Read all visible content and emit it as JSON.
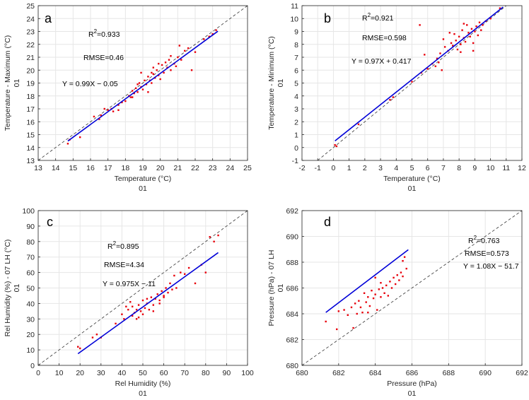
{
  "chart_data": [
    {
      "type": "scatter",
      "panel_label": "a",
      "xlabel": "Temperature (°C)",
      "xsublabel": "01",
      "ylabel": "Temperature - Maximum (°C)",
      "ysublabel": "01",
      "xlim": [
        13,
        25
      ],
      "ylim": [
        13,
        25
      ],
      "xticks": [
        13,
        14,
        15,
        16,
        17,
        18,
        19,
        20,
        21,
        22,
        23,
        24,
        25
      ],
      "yticks": [
        13,
        14,
        15,
        16,
        17,
        18,
        19,
        20,
        21,
        22,
        23,
        24,
        25
      ],
      "r2_prefix": "R",
      "r2_sup": "2",
      "r2_value": "=0.933",
      "rmse": "RMSE=0.46",
      "equation": "Y = 0.99X  − 0.05",
      "fit": {
        "slope": 0.99,
        "intercept": -0.05,
        "x_range": [
          14.7,
          23.3
        ]
      },
      "points": [
        [
          14.7,
          14.3
        ],
        [
          14.8,
          14.6
        ],
        [
          15.4,
          14.8
        ],
        [
          16.2,
          16.4
        ],
        [
          16.5,
          16.2
        ],
        [
          16.6,
          16.5
        ],
        [
          16.8,
          17.0
        ],
        [
          17.0,
          16.9
        ],
        [
          17.2,
          17.0
        ],
        [
          17.3,
          16.8
        ],
        [
          17.6,
          16.9
        ],
        [
          17.6,
          17.3
        ],
        [
          17.8,
          17.5
        ],
        [
          18.0,
          17.6
        ],
        [
          18.2,
          18.0
        ],
        [
          18.3,
          17.9
        ],
        [
          18.4,
          18.4
        ],
        [
          18.5,
          18.2
        ],
        [
          18.6,
          18.6
        ],
        [
          18.7,
          18.3
        ],
        [
          18.8,
          19.0
        ],
        [
          18.9,
          18.7
        ],
        [
          19.0,
          18.5
        ],
        [
          19.1,
          19.2
        ],
        [
          19.2,
          18.9
        ],
        [
          19.3,
          19.5
        ],
        [
          19.4,
          19.2
        ],
        [
          19.5,
          19.0
        ],
        [
          19.5,
          19.8
        ],
        [
          19.6,
          20.2
        ],
        [
          19.7,
          19.4
        ],
        [
          19.8,
          20.0
        ],
        [
          19.9,
          19.6
        ],
        [
          20.0,
          19.3
        ],
        [
          20.1,
          20.4
        ],
        [
          20.2,
          19.8
        ],
        [
          20.3,
          20.6
        ],
        [
          20.4,
          20.2
        ],
        [
          20.5,
          20.8
        ],
        [
          20.6,
          20.0
        ],
        [
          20.8,
          20.5
        ],
        [
          21.0,
          21.0
        ],
        [
          21.2,
          20.8
        ],
        [
          21.4,
          21.5
        ],
        [
          21.6,
          21.7
        ],
        [
          21.8,
          20.0
        ],
        [
          22.0,
          21.4
        ],
        [
          22.5,
          22.4
        ],
        [
          22.8,
          22.6
        ],
        [
          23.0,
          22.8
        ],
        [
          23.2,
          23.1
        ],
        [
          18.9,
          19.8
        ],
        [
          18.7,
          18.9
        ],
        [
          19.3,
          18.3
        ],
        [
          20.6,
          21.1
        ],
        [
          20.9,
          20.3
        ],
        [
          21.1,
          21.9
        ],
        [
          19.6,
          19.7
        ],
        [
          19.9,
          20.5
        ],
        [
          18.4,
          17.9
        ]
      ]
    },
    {
      "type": "scatter",
      "panel_label": "b",
      "xlabel": "Temperature (°C)",
      "xsublabel": "01",
      "ylabel": "Temperature - Minimum (°C)",
      "ysublabel": "01",
      "xlim": [
        -2,
        12
      ],
      "ylim": [
        -1,
        11
      ],
      "xticks": [
        -2,
        -1,
        0,
        1,
        2,
        3,
        4,
        5,
        6,
        7,
        8,
        9,
        10,
        11,
        12
      ],
      "yticks": [
        -1,
        0,
        1,
        2,
        3,
        4,
        5,
        6,
        7,
        8,
        9,
        10,
        11
      ],
      "r2_prefix": "R",
      "r2_sup": "2",
      "r2_value": "=0.921",
      "rmse": "RMSE=0.598",
      "equation": "Y = 0.97X + 0.417",
      "fit": {
        "slope": 0.97,
        "intercept": 0.417,
        "x_range": [
          0.1,
          10.8
        ]
      },
      "points": [
        [
          0.1,
          0.2
        ],
        [
          0.2,
          0.1
        ],
        [
          1.6,
          1.8
        ],
        [
          3.6,
          3.7
        ],
        [
          3.8,
          3.9
        ],
        [
          5.0,
          5.1
        ],
        [
          5.5,
          9.5
        ],
        [
          5.6,
          5.8
        ],
        [
          5.8,
          7.2
        ],
        [
          6.0,
          6.1
        ],
        [
          6.3,
          6.5
        ],
        [
          6.5,
          6.3
        ],
        [
          6.6,
          6.9
        ],
        [
          6.7,
          6.6
        ],
        [
          6.8,
          7.3
        ],
        [
          6.9,
          6.0
        ],
        [
          7.0,
          8.4
        ],
        [
          7.1,
          7.8
        ],
        [
          7.3,
          7.5
        ],
        [
          7.5,
          8.1
        ],
        [
          7.6,
          7.9
        ],
        [
          7.7,
          8.8
        ],
        [
          7.8,
          8.3
        ],
        [
          7.9,
          7.6
        ],
        [
          8.0,
          8.6
        ],
        [
          8.1,
          8.0
        ],
        [
          8.2,
          9.1
        ],
        [
          8.3,
          8.5
        ],
        [
          8.4,
          8.2
        ],
        [
          8.5,
          9.5
        ],
        [
          8.6,
          8.9
        ],
        [
          8.7,
          8.6
        ],
        [
          8.8,
          9.2
        ],
        [
          8.9,
          8.1
        ],
        [
          9.0,
          9.0
        ],
        [
          9.1,
          9.4
        ],
        [
          9.2,
          8.7
        ],
        [
          9.3,
          9.7
        ],
        [
          9.4,
          9.1
        ],
        [
          9.5,
          9.5
        ],
        [
          9.7,
          9.8
        ],
        [
          10.0,
          10.0
        ],
        [
          10.6,
          10.8
        ],
        [
          8.1,
          7.4
        ],
        [
          7.4,
          8.9
        ],
        [
          8.9,
          7.5
        ],
        [
          8.3,
          9.6
        ]
      ]
    },
    {
      "type": "scatter",
      "panel_label": "c",
      "xlabel": "Rel Humidity (%)",
      "xsublabel": "01",
      "ylabel": "Rel Humidity (%) - 07 LH (°C)",
      "ysublabel": "01",
      "xlim": [
        0,
        100
      ],
      "ylim": [
        0,
        100
      ],
      "xticks": [
        0,
        10,
        20,
        30,
        40,
        50,
        60,
        70,
        80,
        90,
        100
      ],
      "yticks": [
        0,
        10,
        20,
        30,
        40,
        50,
        60,
        70,
        80,
        90,
        100
      ],
      "r2_prefix": "R",
      "r2_sup": "2",
      "r2_value": "=0.895",
      "rmse": "RMSE=4.34",
      "equation": "Y = 0.975X  − 11",
      "fit": {
        "slope": 0.975,
        "intercept": -11,
        "x_range": [
          19,
          86
        ]
      },
      "points": [
        [
          19,
          12
        ],
        [
          20,
          11
        ],
        [
          26,
          18
        ],
        [
          28,
          20
        ],
        [
          30,
          18
        ],
        [
          37,
          27
        ],
        [
          40,
          33
        ],
        [
          41,
          30
        ],
        [
          42,
          38
        ],
        [
          43,
          36
        ],
        [
          44,
          41
        ],
        [
          45,
          32
        ],
        [
          46,
          34
        ],
        [
          47,
          36
        ],
        [
          47,
          30
        ],
        [
          48,
          39
        ],
        [
          49,
          35
        ],
        [
          50,
          42
        ],
        [
          51,
          37
        ],
        [
          52,
          40
        ],
        [
          53,
          36
        ],
        [
          54,
          44
        ],
        [
          55,
          39
        ],
        [
          56,
          43
        ],
        [
          57,
          46
        ],
        [
          58,
          42
        ],
        [
          59,
          48
        ],
        [
          60,
          44
        ],
        [
          61,
          50
        ],
        [
          62,
          47
        ],
        [
          63,
          53
        ],
        [
          64,
          49
        ],
        [
          65,
          58
        ],
        [
          66,
          50
        ],
        [
          68,
          60
        ],
        [
          70,
          59
        ],
        [
          72,
          63
        ],
        [
          75,
          53
        ],
        [
          78,
          65
        ],
        [
          80,
          60
        ],
        [
          82,
          83
        ],
        [
          84,
          80
        ],
        [
          86,
          84
        ],
        [
          45,
          38
        ],
        [
          50,
          33
        ],
        [
          55,
          35
        ],
        [
          60,
          45
        ],
        [
          52,
          43
        ],
        [
          48,
          31
        ],
        [
          58,
          40
        ]
      ]
    },
    {
      "type": "scatter",
      "panel_label": "d",
      "xlabel": "Pressure (hPa)",
      "xsublabel": "01",
      "ylabel": "Pressure (hPa) - 07 LH",
      "ysublabel": "01",
      "xlim": [
        680,
        692
      ],
      "ylim": [
        680,
        692
      ],
      "xticks": [
        680,
        682,
        684,
        686,
        688,
        690,
        692
      ],
      "yticks": [
        680,
        682,
        684,
        686,
        688,
        690,
        692
      ],
      "r2_prefix": "R",
      "r2_sup": "2",
      "r2_value": "=0.763",
      "rmse": "RMSE=0.573",
      "equation": "Y = 1.08X  − 51.7",
      "fit": {
        "slope": 1.08,
        "intercept": -51.7,
        "x_range": [
          681.3,
          685.8
        ]
      },
      "points": [
        [
          681.3,
          683.4
        ],
        [
          681.9,
          682.8
        ],
        [
          682.0,
          684.2
        ],
        [
          682.3,
          684.3
        ],
        [
          682.5,
          683.9
        ],
        [
          682.7,
          684.5
        ],
        [
          682.8,
          682.9
        ],
        [
          682.9,
          684.8
        ],
        [
          683.1,
          685.0
        ],
        [
          683.2,
          684.5
        ],
        [
          683.3,
          684.1
        ],
        [
          683.4,
          685.6
        ],
        [
          683.5,
          684.9
        ],
        [
          683.6,
          685.3
        ],
        [
          683.7,
          684.6
        ],
        [
          683.8,
          685.8
        ],
        [
          683.9,
          685.2
        ],
        [
          684.0,
          685.5
        ],
        [
          684.1,
          684.3
        ],
        [
          684.2,
          685.9
        ],
        [
          684.3,
          685.3
        ],
        [
          684.4,
          686.0
        ],
        [
          684.5,
          685.6
        ],
        [
          684.6,
          686.2
        ],
        [
          684.7,
          685.4
        ],
        [
          684.8,
          686.5
        ],
        [
          684.9,
          686.0
        ],
        [
          685.0,
          686.8
        ],
        [
          685.1,
          686.3
        ],
        [
          685.2,
          687.0
        ],
        [
          685.3,
          686.6
        ],
        [
          685.4,
          687.2
        ],
        [
          685.5,
          686.9
        ],
        [
          685.6,
          688.4
        ],
        [
          685.7,
          687.5
        ],
        [
          685.5,
          688.1
        ],
        [
          683.0,
          684.0
        ],
        [
          683.6,
          684.1
        ],
        [
          684.3,
          686.4
        ],
        [
          684.0,
          686.8
        ]
      ]
    }
  ]
}
